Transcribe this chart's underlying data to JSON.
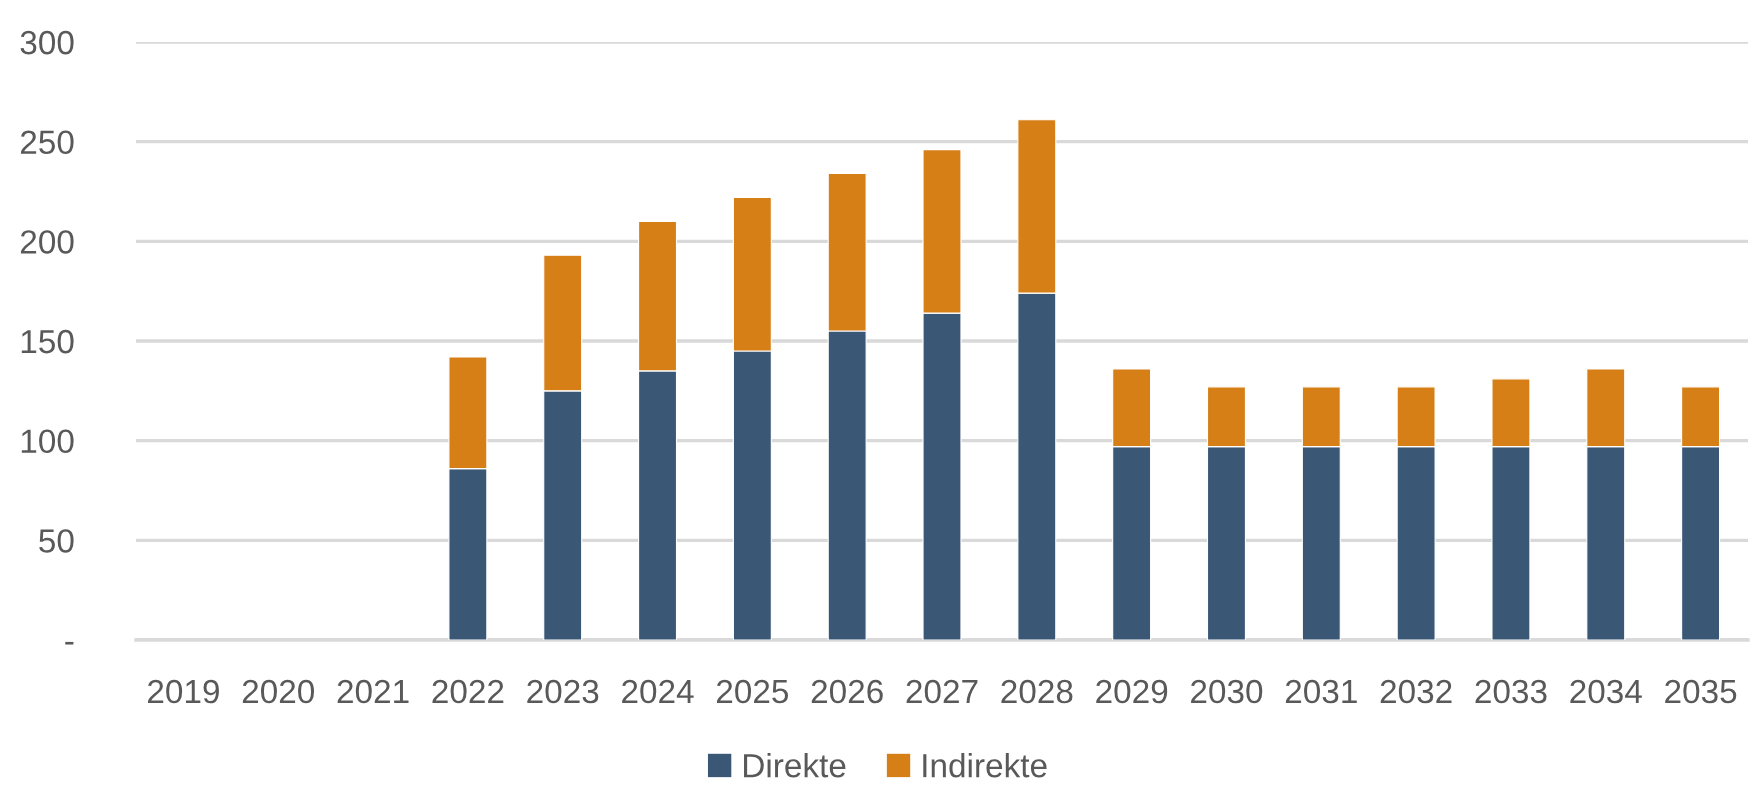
{
  "chart_data": {
    "type": "bar",
    "stacked": true,
    "categories": [
      "2019",
      "2020",
      "2021",
      "2022",
      "2023",
      "2024",
      "2025",
      "2026",
      "2027",
      "2028",
      "2029",
      "2030",
      "2031",
      "2032",
      "2033",
      "2034",
      "2035"
    ],
    "series": [
      {
        "name": "Direkte",
        "color": "#3a5775",
        "values": [
          null,
          null,
          null,
          86,
          125,
          135,
          145,
          155,
          164,
          174,
          97,
          97,
          97,
          97,
          97,
          97,
          97
        ]
      },
      {
        "name": "Indirekte",
        "color": "#d77f17",
        "values": [
          null,
          null,
          null,
          56,
          68,
          75,
          77,
          79,
          82,
          87,
          39,
          30,
          30,
          30,
          34,
          39,
          30
        ]
      }
    ],
    "ylim": [
      0,
      300
    ],
    "yticks": [
      {
        "value": 0,
        "label": "-"
      },
      50,
      100,
      150,
      200,
      250,
      300
    ],
    "grid": "y",
    "legend": "bottom"
  }
}
